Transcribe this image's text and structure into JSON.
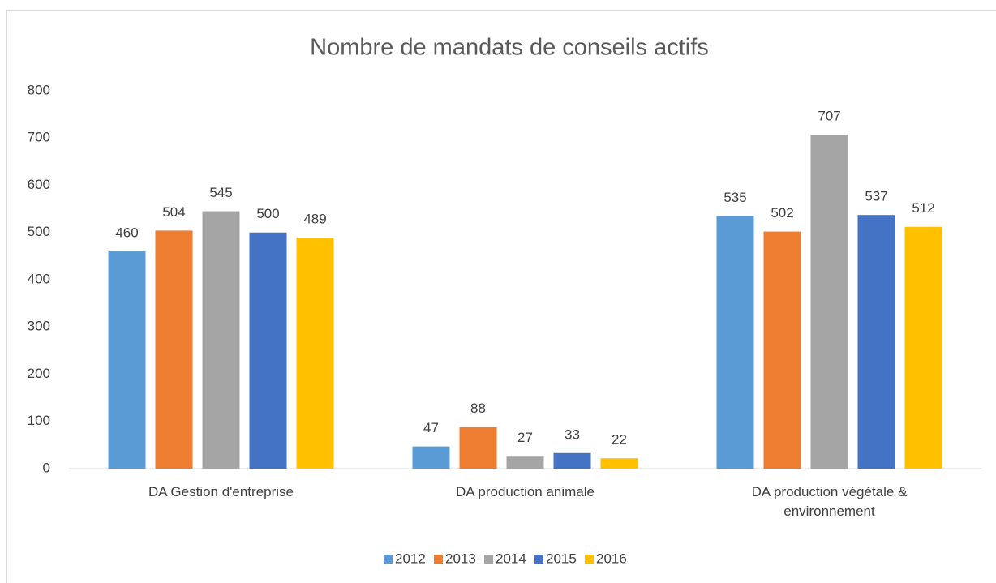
{
  "chart_data": {
    "type": "bar",
    "title": "Nombre de mandats de conseils actifs",
    "categories": [
      "DA Gestion d'entreprise",
      "DA production animale",
      "DA production végétale & environnement"
    ],
    "series": [
      {
        "name": "2012",
        "color": "#5b9bd5",
        "values": [
          460,
          47,
          535
        ]
      },
      {
        "name": "2013",
        "color": "#ed7d31",
        "values": [
          504,
          88,
          502
        ]
      },
      {
        "name": "2014",
        "color": "#a5a5a5",
        "values": [
          545,
          27,
          707
        ]
      },
      {
        "name": "2015",
        "color": "#4472c4",
        "values": [
          500,
          33,
          537
        ]
      },
      {
        "name": "2016",
        "color": "#ffc000",
        "values": [
          489,
          22,
          512
        ]
      }
    ],
    "ylim": [
      0,
      800
    ],
    "yticks": [
      0,
      100,
      200,
      300,
      400,
      500,
      600,
      700,
      800
    ],
    "grid": false,
    "legend": "bottom",
    "data_labels": true
  }
}
